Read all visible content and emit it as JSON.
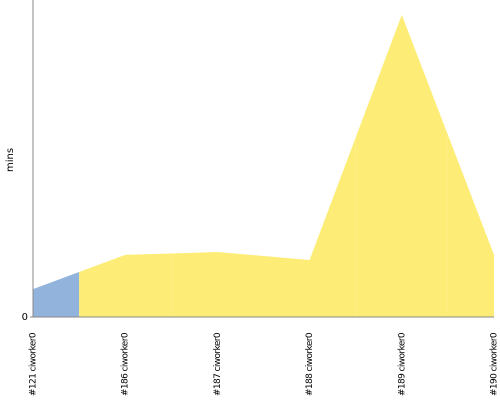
{
  "chart_data": {
    "type": "area",
    "y_label": "mins",
    "categories": [
      "#121 ciworker0",
      "#186 ciworker0",
      "#187 ciworker0",
      "#188 ciworker0",
      "#189 ciworker0",
      "#190 ciworker0"
    ],
    "values": [
      8.8,
      19.6,
      20.5,
      18,
      95.3,
      19.6
    ],
    "colors": [
      "#92b4dc",
      "#fded76",
      "#fded76",
      "#fded76",
      "#fded76",
      "#fded76"
    ],
    "ylim": [
      0,
      100
    ],
    "yticks": [
      0
    ]
  }
}
